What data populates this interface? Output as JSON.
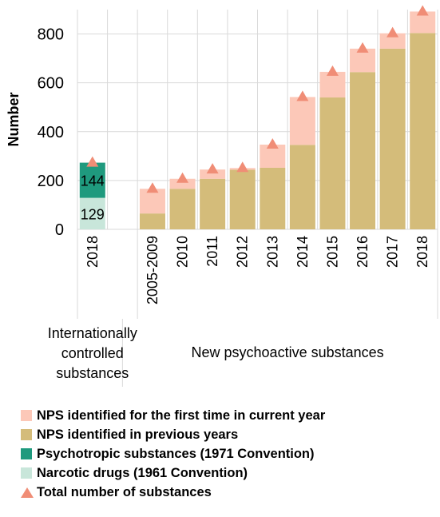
{
  "chart_data": {
    "type": "bar",
    "ylabel": "Number",
    "ylim": [
      0,
      900
    ],
    "yticks": [
      0,
      200,
      400,
      600,
      800
    ],
    "grid": true,
    "groups": [
      {
        "label": "Internationally controlled substances",
        "lines": [
          "Internationally",
          "controlled",
          "substances"
        ],
        "categories": [
          "2018"
        ]
      },
      {
        "label": "New psychoactive substances",
        "lines": [
          "New psychoactive substances"
        ],
        "categories": [
          "2005-2009",
          "2010",
          "2011",
          "2012",
          "2013",
          "2014",
          "2015",
          "2016",
          "2017",
          "2018"
        ]
      }
    ],
    "categories": [
      "2018",
      "2005-2009",
      "2010",
      "2011",
      "2012",
      "2013",
      "2014",
      "2015",
      "2016",
      "2017",
      "2018"
    ],
    "series": [
      {
        "name": "NPS identified for the first time in current year",
        "color": "#fcc8b8",
        "values": [
          null,
          101,
          41,
          38,
          7,
          95,
          196,
          105,
          96,
          63,
          88
        ]
      },
      {
        "name": "NPS identified in previous years",
        "color": "#d4bc7a",
        "values": [
          null,
          65,
          166,
          207,
          244,
          252,
          346,
          540,
          644,
          740,
          804
        ]
      },
      {
        "name": "Psychotropic substances (1971 Convention)",
        "color": "#1f9a7e",
        "values": [
          144,
          null,
          null,
          null,
          null,
          null,
          null,
          null,
          null,
          null,
          null
        ]
      },
      {
        "name": "Narcotic drugs (1961 Convention)",
        "color": "#c8e6da",
        "values": [
          129,
          null,
          null,
          null,
          null,
          null,
          null,
          null,
          null,
          null,
          null
        ]
      },
      {
        "name": "Total number of substances",
        "color": "#f08d76",
        "marker": "triangle",
        "values": [
          273,
          166,
          207,
          245,
          251,
          347,
          542,
          645,
          740,
          803,
          892
        ]
      }
    ],
    "data_labels": [
      {
        "category": "2018",
        "series": "Psychotropic substances (1971 Convention)",
        "text": "144"
      },
      {
        "category": "2018",
        "series": "Narcotic drugs (1961 Convention)",
        "text": "129"
      }
    ],
    "legend": {
      "position": "bottom",
      "items": [
        {
          "name": "NPS identified for the first time in current year",
          "color": "#fcc8b8",
          "shape": "square"
        },
        {
          "name": "NPS identified in previous years",
          "color": "#d4bc7a",
          "shape": "square"
        },
        {
          "name": "Psychotropic substances (1971 Convention)",
          "color": "#1f9a7e",
          "shape": "square"
        },
        {
          "name": "Narcotic drugs (1961 Convention)",
          "color": "#c8e6da",
          "shape": "square"
        },
        {
          "name": "Total number of substances",
          "color": "#f08d76",
          "shape": "triangle"
        }
      ]
    }
  }
}
